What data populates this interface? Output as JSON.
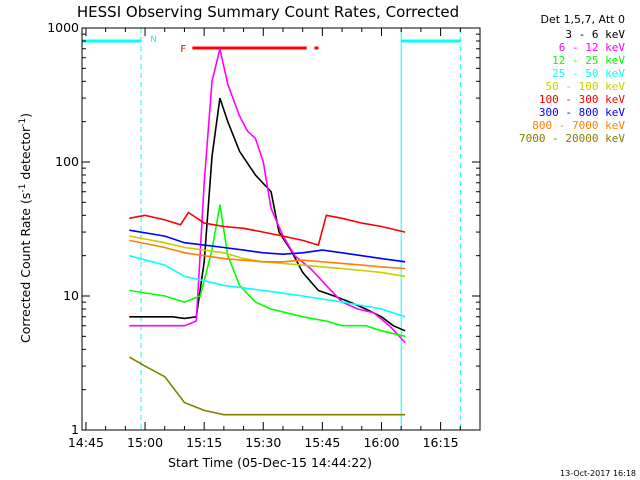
{
  "chart_data": {
    "type": "line",
    "title": "HESSI Observing Summary Count Rates, Corrected",
    "xlabel": "Start Time (05-Dec-15 14:44:22)",
    "ylabel_main": "Corrected Count Rate (s",
    "ylabel_sup1": "-1",
    "ylabel_mid": " detector",
    "ylabel_sup2": "-1",
    "ylabel_end": ")",
    "xlim": [
      "14:44",
      "16:25"
    ],
    "ylim": [
      1,
      1000
    ],
    "y_scale": "log",
    "x_ticks": [
      "14:45",
      "15:00",
      "15:15",
      "15:30",
      "15:45",
      "16:00",
      "16:15"
    ],
    "y_ticks": [
      {
        "label": "1",
        "value": 1
      },
      {
        "label": "10",
        "value": 10
      },
      {
        "label": "100",
        "value": 100
      },
      {
        "label": "1000",
        "value": 1000
      }
    ],
    "legend_header": "Det 1,5,7, Att 0",
    "legend_placement": "right",
    "footer_date": "13-Oct-2017 16:18",
    "annotations": {
      "night_label": "N",
      "flare_label": "F",
      "night_color": "#00ffff",
      "flare_color": "#ff0000",
      "night_intervals": [
        [
          "14:44",
          "14:59"
        ],
        [
          "16:05",
          "16:20"
        ]
      ],
      "flare_intervals": [
        [
          "15:12",
          "15:41"
        ],
        [
          "15:43",
          "15:44"
        ]
      ],
      "dashed_lines": [
        "14:59",
        "16:20"
      ],
      "solid_lines": [
        "16:05"
      ]
    },
    "series": [
      {
        "name": "3 - 6 keV",
        "color": "#000000",
        "points": [
          [
            "14:56",
            7
          ],
          [
            "15:07",
            7
          ],
          [
            "15:10",
            6.8
          ],
          [
            "15:13",
            7
          ],
          [
            "15:15",
            18
          ],
          [
            "15:17",
            110
          ],
          [
            "15:19",
            300
          ],
          [
            "15:21",
            200
          ],
          [
            "15:24",
            120
          ],
          [
            "15:28",
            80
          ],
          [
            "15:32",
            60
          ],
          [
            "15:34",
            30
          ],
          [
            "15:37",
            22
          ],
          [
            "15:40",
            15
          ],
          [
            "15:44",
            11
          ],
          [
            "15:48",
            10
          ],
          [
            "15:52",
            9
          ],
          [
            "15:56",
            8
          ],
          [
            "16:00",
            7
          ],
          [
            "16:03",
            6
          ],
          [
            "16:06",
            5.5
          ]
        ]
      },
      {
        "name": "6 - 12 keV",
        "color": "#ff00ff",
        "points": [
          [
            "14:56",
            6
          ],
          [
            "15:07",
            6
          ],
          [
            "15:10",
            6
          ],
          [
            "15:13",
            6.5
          ],
          [
            "15:15",
            70
          ],
          [
            "15:17",
            400
          ],
          [
            "15:19",
            700
          ],
          [
            "15:21",
            380
          ],
          [
            "15:24",
            220
          ],
          [
            "15:26",
            170
          ],
          [
            "15:28",
            150
          ],
          [
            "15:30",
            100
          ],
          [
            "15:32",
            45
          ],
          [
            "15:35",
            28
          ],
          [
            "15:38",
            20
          ],
          [
            "15:42",
            16
          ],
          [
            "15:46",
            12
          ],
          [
            "15:50",
            9
          ],
          [
            "15:54",
            8
          ],
          [
            "15:58",
            7.5
          ],
          [
            "16:02",
            6
          ],
          [
            "16:06",
            4.5
          ]
        ]
      },
      {
        "name": "12 - 25 keV",
        "color": "#00ff00",
        "points": [
          [
            "14:56",
            11
          ],
          [
            "15:05",
            10
          ],
          [
            "15:10",
            9
          ],
          [
            "15:14",
            10
          ],
          [
            "15:17",
            22
          ],
          [
            "15:19",
            48
          ],
          [
            "15:21",
            20
          ],
          [
            "15:24",
            12
          ],
          [
            "15:28",
            9
          ],
          [
            "15:32",
            8
          ],
          [
            "15:40",
            7
          ],
          [
            "15:46",
            6.5
          ],
          [
            "15:50",
            6
          ],
          [
            "15:56",
            6
          ],
          [
            "16:00",
            5.5
          ],
          [
            "16:06",
            5
          ]
        ]
      },
      {
        "name": "25 - 50 keV",
        "color": "#00ffff",
        "points": [
          [
            "14:56",
            20
          ],
          [
            "15:05",
            17
          ],
          [
            "15:10",
            14
          ],
          [
            "15:15",
            13
          ],
          [
            "15:20",
            12
          ],
          [
            "15:25",
            11.5
          ],
          [
            "15:30",
            11
          ],
          [
            "15:35",
            10.5
          ],
          [
            "15:40",
            10
          ],
          [
            "15:45",
            9.5
          ],
          [
            "15:50",
            9
          ],
          [
            "15:55",
            8.5
          ],
          [
            "16:00",
            8
          ],
          [
            "16:06",
            7
          ]
        ]
      },
      {
        "name": "50 - 100 keV",
        "color": "#cccc00",
        "points": [
          [
            "14:56",
            28
          ],
          [
            "15:05",
            25
          ],
          [
            "15:10",
            23
          ],
          [
            "15:15",
            22
          ],
          [
            "15:20",
            21
          ],
          [
            "15:25",
            19
          ],
          [
            "15:30",
            18
          ],
          [
            "15:35",
            17.5
          ],
          [
            "15:40",
            17
          ],
          [
            "15:45",
            16.5
          ],
          [
            "15:50",
            16
          ],
          [
            "15:55",
            15.5
          ],
          [
            "16:00",
            15
          ],
          [
            "16:06",
            14
          ]
        ]
      },
      {
        "name": "100 - 300 keV",
        "color": "#ff0000",
        "points": [
          [
            "14:56",
            38
          ],
          [
            "15:00",
            40
          ],
          [
            "15:05",
            37
          ],
          [
            "15:09",
            34
          ],
          [
            "15:11",
            42
          ],
          [
            "15:15",
            35
          ],
          [
            "15:20",
            33
          ],
          [
            "15:25",
            32
          ],
          [
            "15:30",
            30
          ],
          [
            "15:35",
            28
          ],
          [
            "15:40",
            26
          ],
          [
            "15:44",
            24
          ],
          [
            "15:46",
            40
          ],
          [
            "15:50",
            38
          ],
          [
            "15:55",
            35
          ],
          [
            "16:00",
            33
          ],
          [
            "16:06",
            30
          ]
        ]
      },
      {
        "name": "300 - 800 keV",
        "color": "#0000ff",
        "points": [
          [
            "14:56",
            31
          ],
          [
            "15:05",
            28
          ],
          [
            "15:10",
            25
          ],
          [
            "15:15",
            24
          ],
          [
            "15:20",
            23
          ],
          [
            "15:25",
            22
          ],
          [
            "15:30",
            21
          ],
          [
            "15:35",
            20.5
          ],
          [
            "15:40",
            21
          ],
          [
            "15:45",
            22
          ],
          [
            "15:50",
            21
          ],
          [
            "15:55",
            20
          ],
          [
            "16:00",
            19
          ],
          [
            "16:06",
            18
          ]
        ]
      },
      {
        "name": "800 - 7000 keV",
        "color": "#ff8000",
        "points": [
          [
            "14:56",
            26
          ],
          [
            "15:05",
            23
          ],
          [
            "15:10",
            21
          ],
          [
            "15:15",
            20
          ],
          [
            "15:20",
            19
          ],
          [
            "15:25",
            18.5
          ],
          [
            "15:30",
            18
          ],
          [
            "15:35",
            18
          ],
          [
            "15:40",
            18.5
          ],
          [
            "15:45",
            18
          ],
          [
            "15:50",
            17.5
          ],
          [
            "15:55",
            17
          ],
          [
            "16:00",
            16.5
          ],
          [
            "16:06",
            16
          ]
        ]
      },
      {
        "name": "7000 - 20000 keV",
        "color": "#808000",
        "points": [
          [
            "14:56",
            3.5
          ],
          [
            "15:00",
            3
          ],
          [
            "15:05",
            2.5
          ],
          [
            "15:10",
            1.6
          ],
          [
            "15:15",
            1.4
          ],
          [
            "15:20",
            1.3
          ],
          [
            "15:25",
            1.3
          ],
          [
            "15:30",
            1.3
          ],
          [
            "15:35",
            1.3
          ],
          [
            "15:40",
            1.3
          ],
          [
            "15:45",
            1.3
          ],
          [
            "15:50",
            1.3
          ],
          [
            "15:55",
            1.3
          ],
          [
            "16:00",
            1.3
          ],
          [
            "16:06",
            1.3
          ]
        ]
      }
    ]
  }
}
